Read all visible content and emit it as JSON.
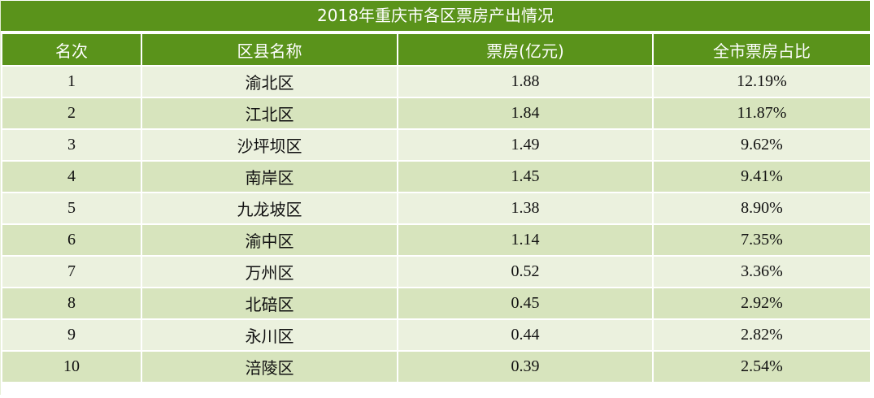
{
  "table": {
    "title": "2018年重庆市各区票房产出情况",
    "headers": [
      "名次",
      "区县名称",
      "票房(亿元)",
      "全市票房占比"
    ],
    "rows": [
      {
        "rank": "1",
        "district": "渝北区",
        "box_office": "1.88",
        "share": "12.19%"
      },
      {
        "rank": "2",
        "district": "江北区",
        "box_office": "1.84",
        "share": "11.87%"
      },
      {
        "rank": "3",
        "district": "沙坪坝区",
        "box_office": "1.49",
        "share": "9.62%"
      },
      {
        "rank": "4",
        "district": "南岸区",
        "box_office": "1.45",
        "share": "9.41%"
      },
      {
        "rank": "5",
        "district": "九龙坡区",
        "box_office": "1.38",
        "share": "8.90%"
      },
      {
        "rank": "6",
        "district": "渝中区",
        "box_office": "1.14",
        "share": "7.35%"
      },
      {
        "rank": "7",
        "district": "万州区",
        "box_office": "0.52",
        "share": "3.36%"
      },
      {
        "rank": "8",
        "district": "北碚区",
        "box_office": "0.45",
        "share": "2.92%"
      },
      {
        "rank": "9",
        "district": "永川区",
        "box_office": "0.44",
        "share": "2.82%"
      },
      {
        "rank": "10",
        "district": "涪陵区",
        "box_office": "0.39",
        "share": "2.54%"
      }
    ]
  },
  "colors": {
    "header_green": "#5a931b",
    "row_light": "#ebf1de",
    "row_dark": "#d7e4bd"
  }
}
